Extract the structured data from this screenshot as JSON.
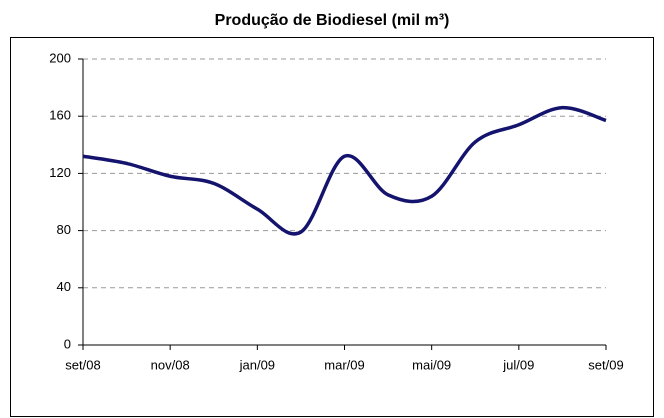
{
  "chart_data": {
    "type": "line",
    "title": "Produção de Biodiesel (mil m³)",
    "categories": [
      "set/08",
      null,
      "nov/08",
      null,
      "jan/09",
      null,
      "mar/09",
      null,
      "mai/09",
      null,
      "jul/09",
      null,
      "set/09"
    ],
    "series": [
      {
        "name": "Produção",
        "color": "#14146e",
        "values": [
          132,
          127,
          118,
          113,
          95,
          79,
          132,
          105,
          104,
          142,
          154,
          166,
          157
        ]
      }
    ],
    "ylim": [
      0,
      200
    ],
    "yticks": [
      0,
      40,
      80,
      120,
      160,
      200
    ],
    "grid": true
  }
}
